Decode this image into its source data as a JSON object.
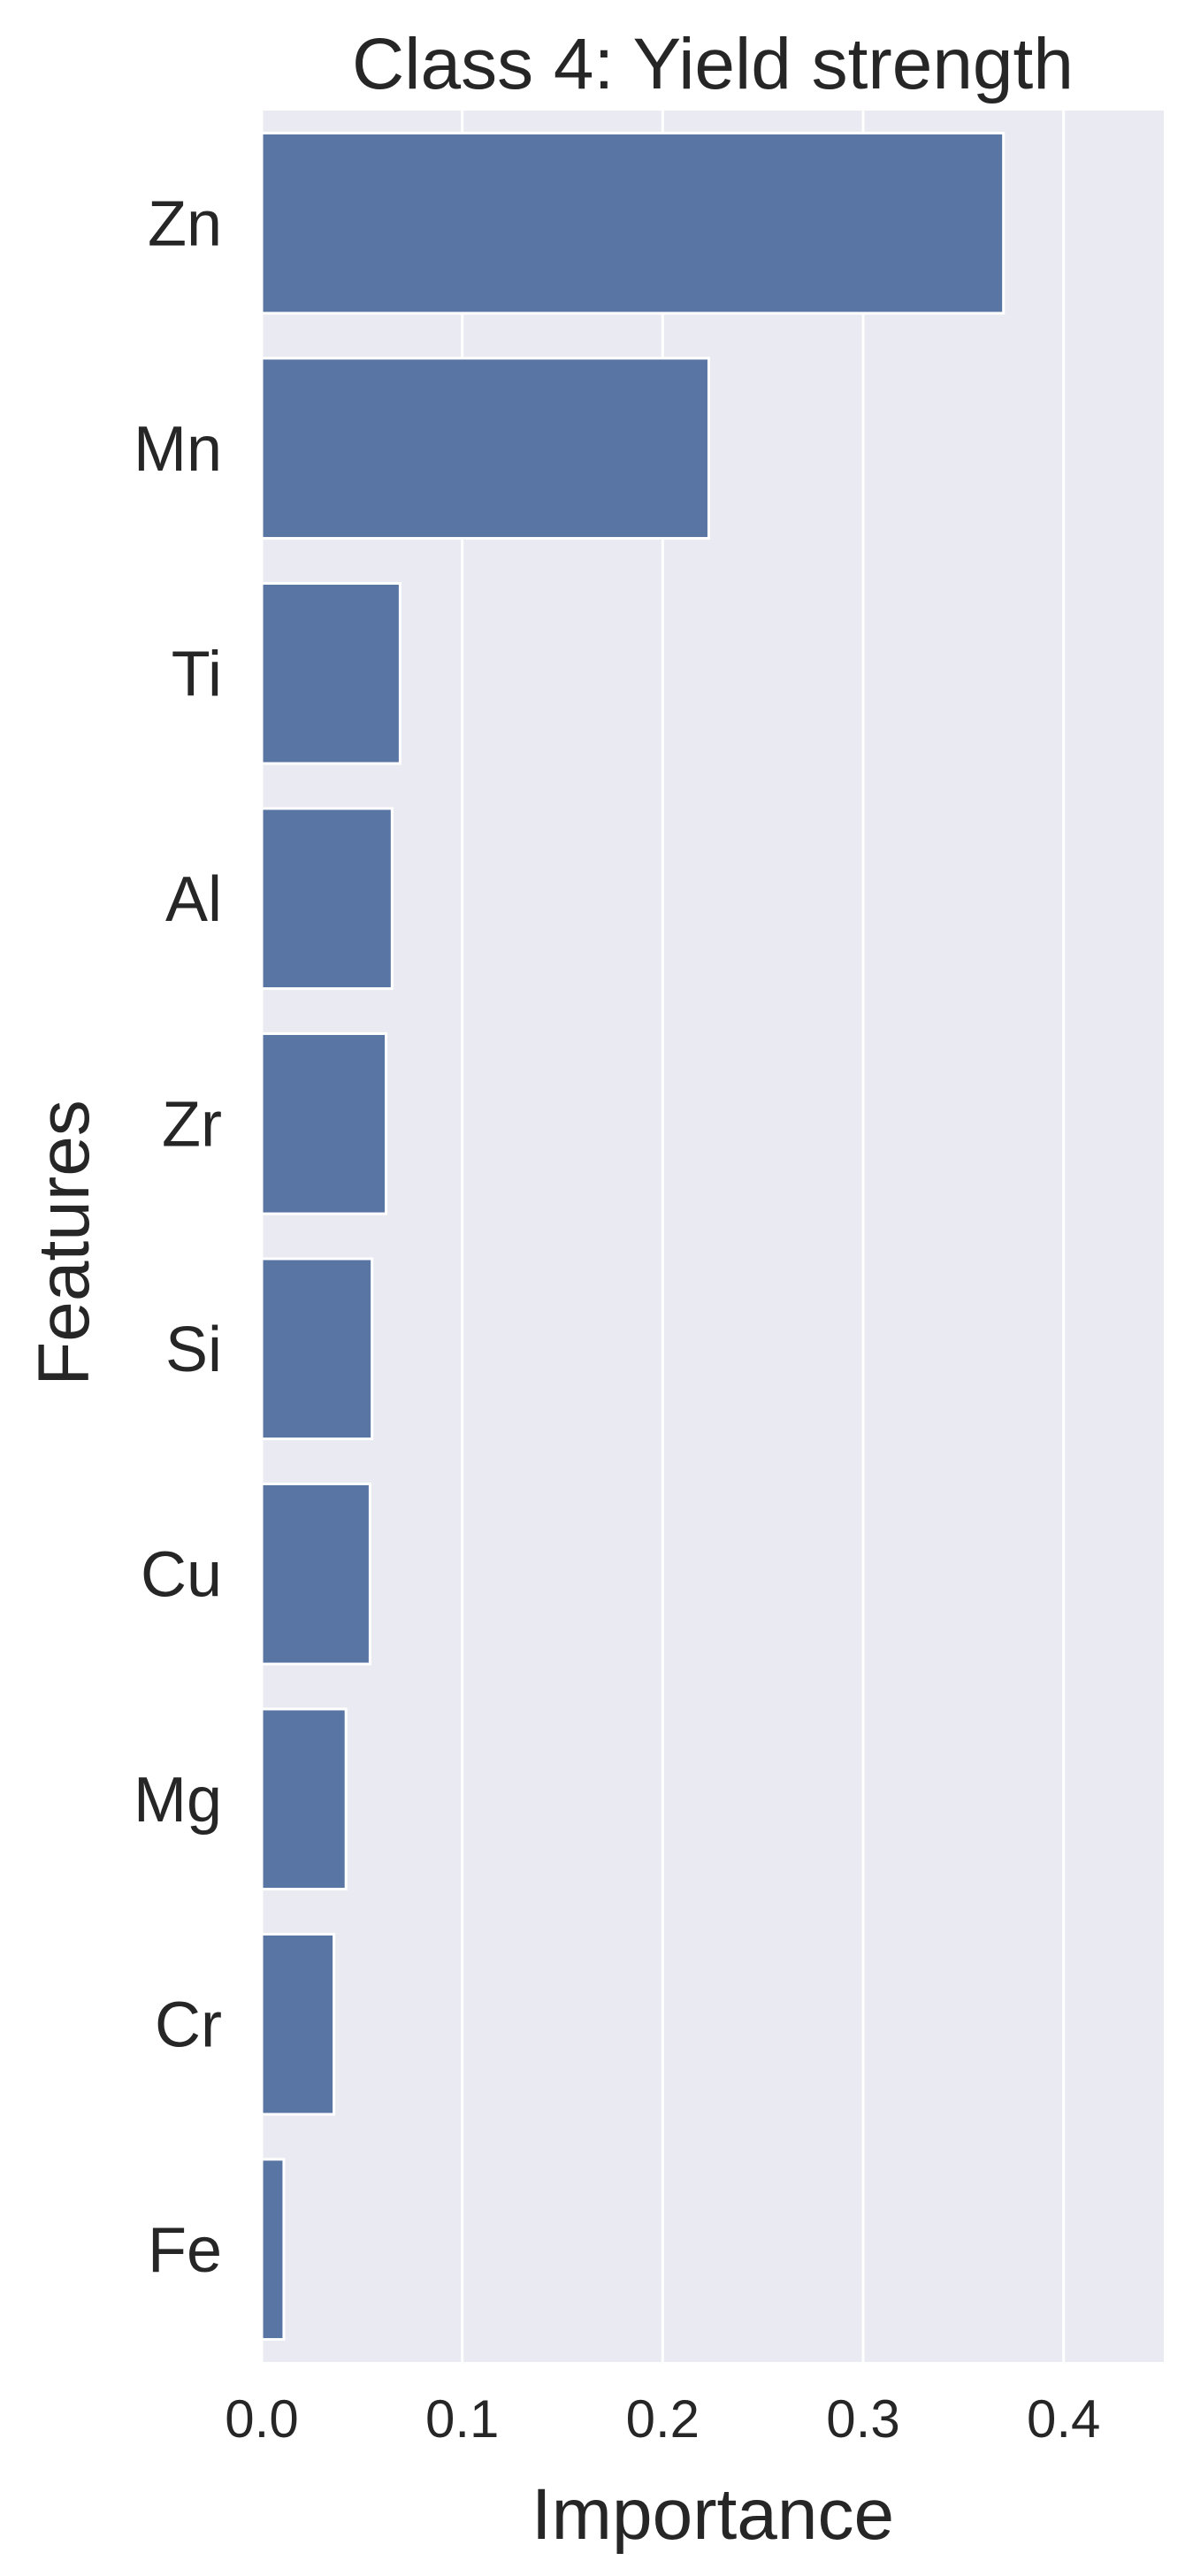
{
  "chart_data": {
    "type": "bar",
    "orientation": "horizontal",
    "title": "Class 4: Yield strength",
    "xlabel": "Importance",
    "ylabel": "Features",
    "categories": [
      "Zn",
      "Mn",
      "Ti",
      "Al",
      "Zr",
      "Si",
      "Cu",
      "Mg",
      "Cr",
      "Fe"
    ],
    "values": [
      0.37,
      0.223,
      0.069,
      0.065,
      0.062,
      0.055,
      0.054,
      0.042,
      0.036,
      0.011
    ],
    "xlim": [
      0,
      0.45
    ],
    "xticks": [
      0.0,
      0.1,
      0.2,
      0.3,
      0.4
    ],
    "xtick_labels": [
      "0.0",
      "0.1",
      "0.2",
      "0.3",
      "0.4"
    ],
    "grid": true,
    "colors": {
      "bar": "#5975a4",
      "plot_background": "#eaeaf2",
      "grid": "#ffffff",
      "text": "#262626"
    }
  }
}
